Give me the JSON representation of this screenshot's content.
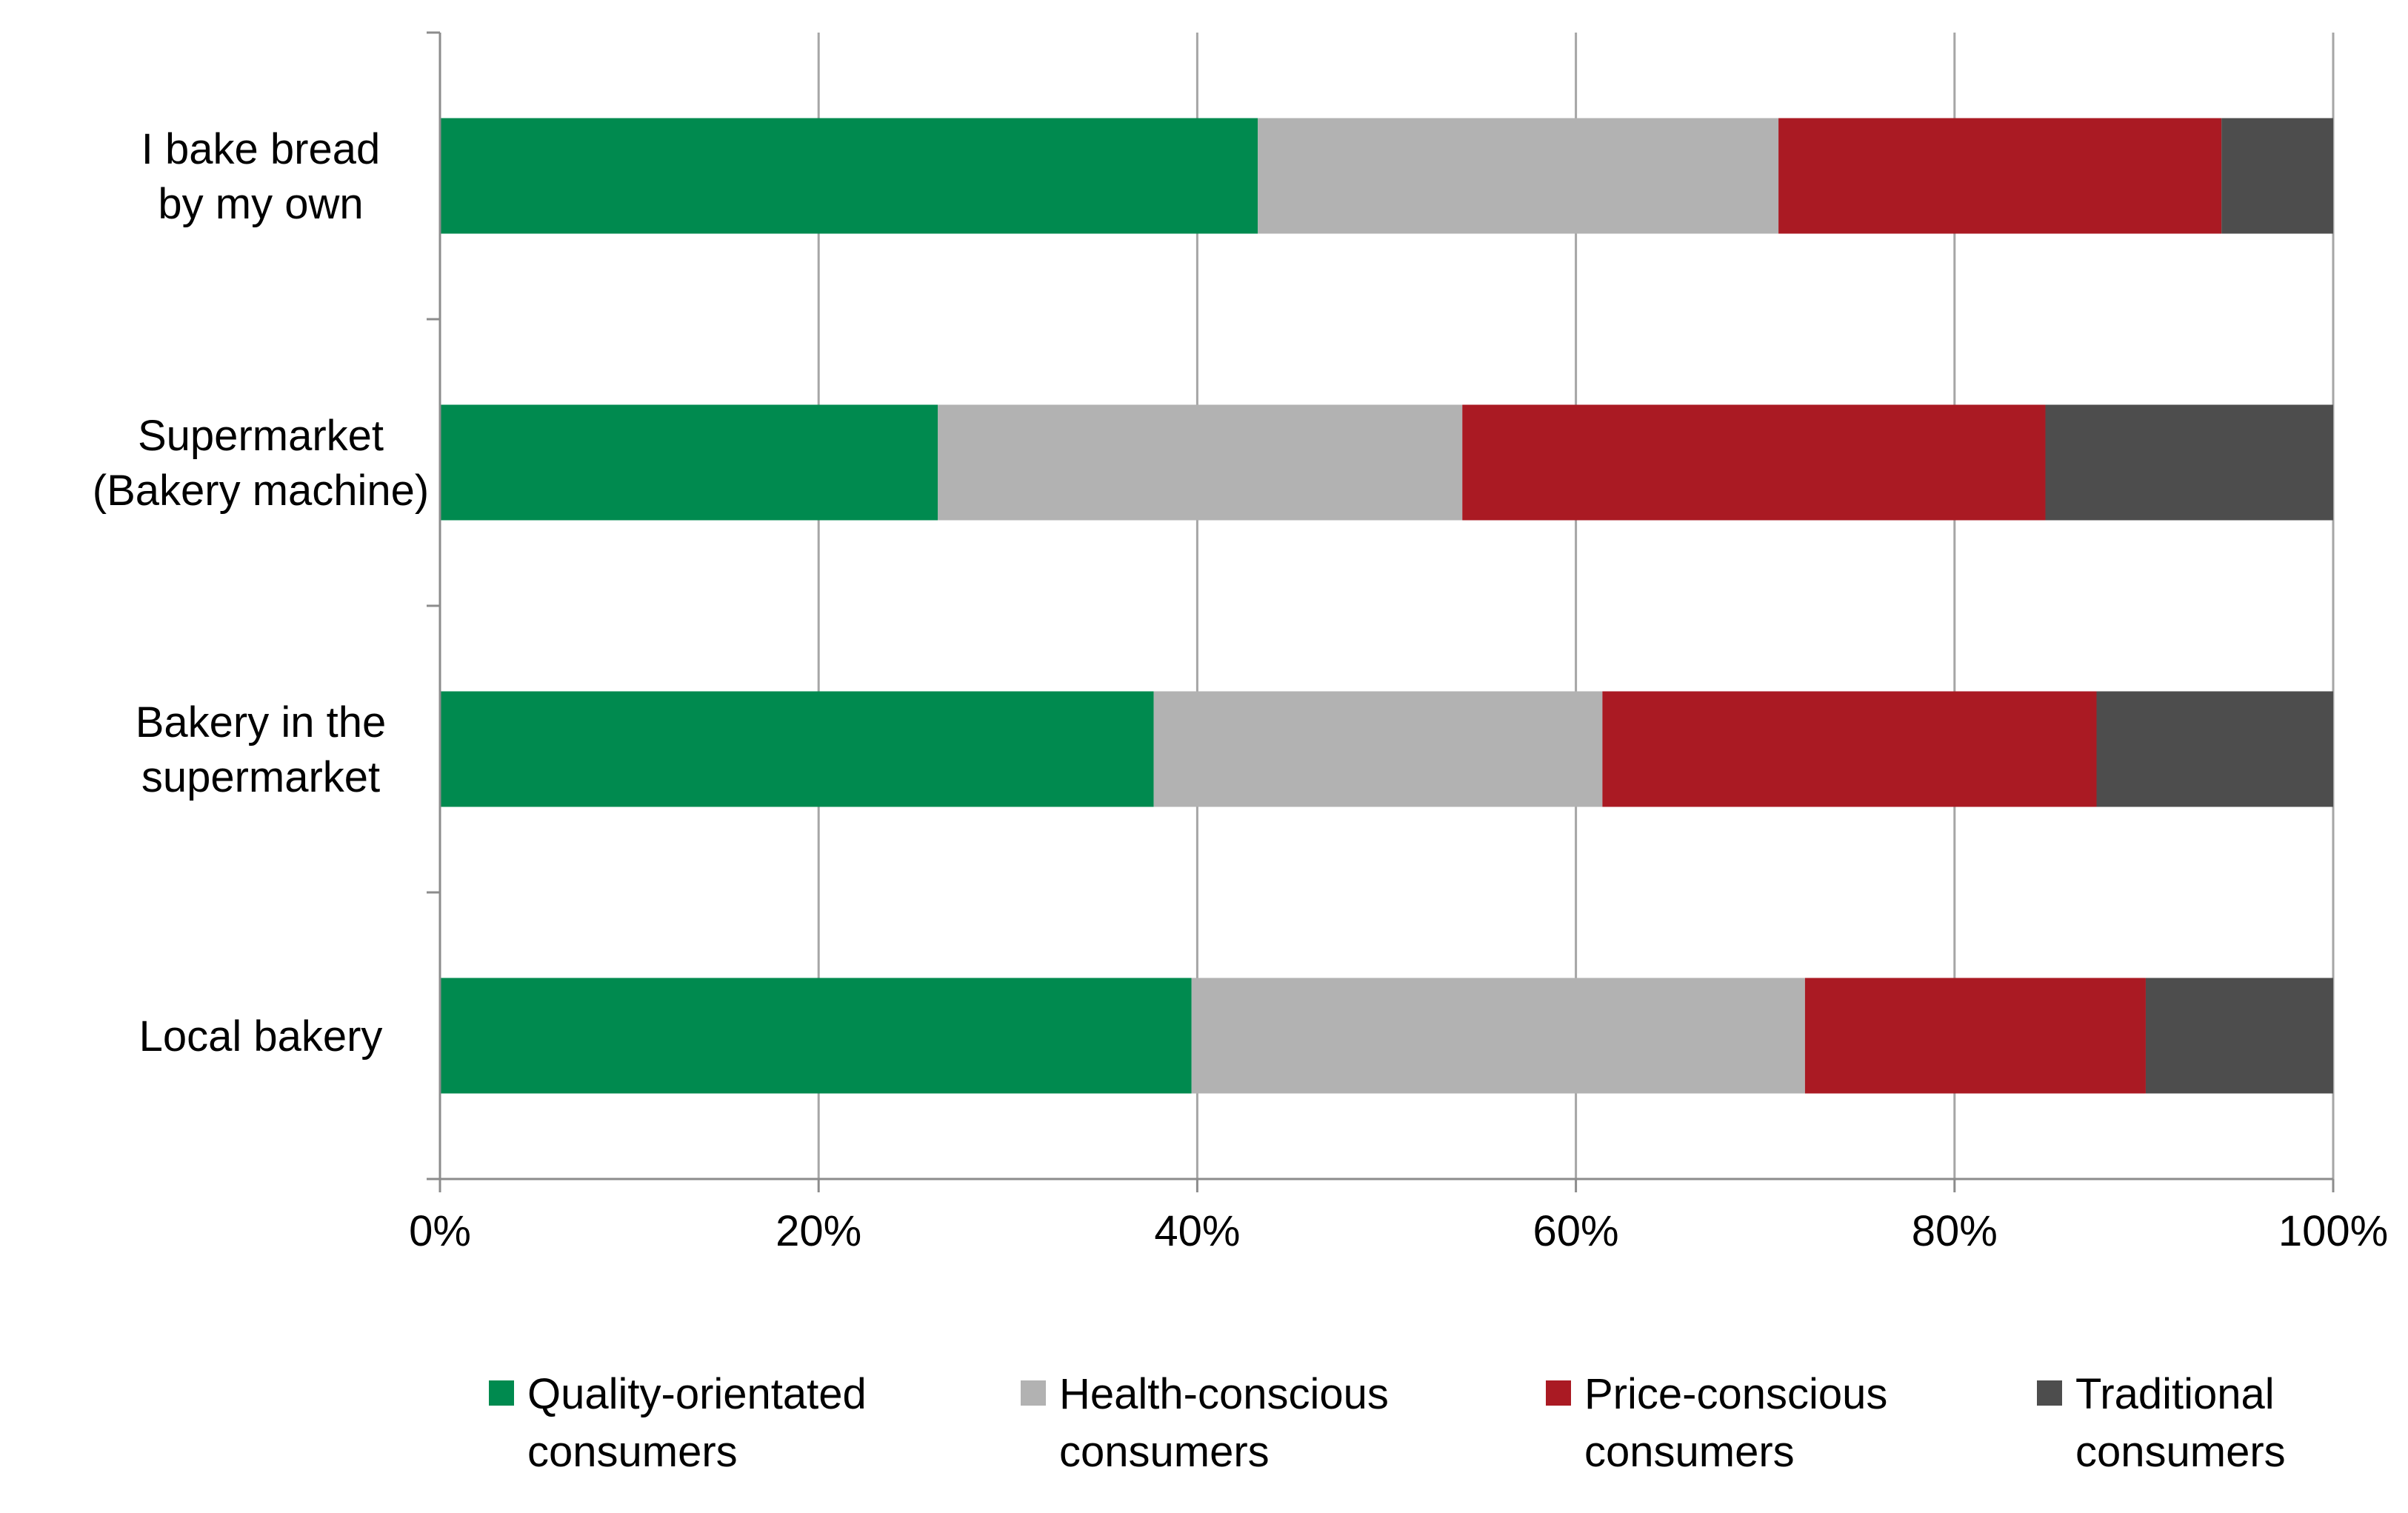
{
  "chart_data": {
    "type": "bar",
    "orientation": "horizontal",
    "stacking": "percent",
    "title": "",
    "xlabel": "",
    "ylabel": "",
    "xlim": [
      0,
      100
    ],
    "x_ticks": [
      0,
      20,
      40,
      60,
      80,
      100
    ],
    "x_tick_labels": [
      "0%",
      "20%",
      "40%",
      "60%",
      "80%",
      "100%"
    ],
    "grid": true,
    "legend_position": "bottom",
    "categories": [
      [
        "I bake bread",
        "by my own"
      ],
      [
        "Supermarket",
        "(Bakery machine)"
      ],
      [
        "Bakery in the",
        "supermarket"
      ],
      [
        "Local bakery"
      ]
    ],
    "series": [
      {
        "name": [
          "Quality-orientated",
          "consumers"
        ],
        "color": "#008A4F",
        "values": [
          43.2,
          26.3,
          37.7,
          39.7
        ]
      },
      {
        "name": [
          "Health-conscious",
          "consumers"
        ],
        "color": "#B2B2B2",
        "values": [
          27.5,
          27.7,
          23.7,
          32.4
        ]
      },
      {
        "name": [
          "Price-conscious",
          "consumers"
        ],
        "color": "#AA1A23",
        "values": [
          23.4,
          30.8,
          26.1,
          18.0
        ]
      },
      {
        "name": [
          "Traditional",
          "consumers"
        ],
        "color": "#4D4D4D",
        "values": [
          5.9,
          15.2,
          12.5,
          9.9
        ]
      }
    ]
  }
}
